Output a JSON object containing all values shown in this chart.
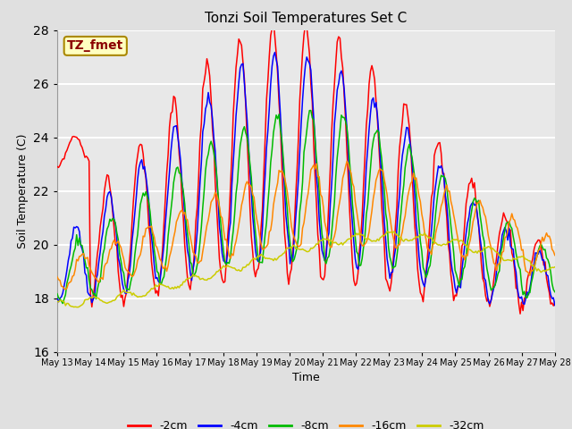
{
  "title": "Tonzi Soil Temperatures Set C",
  "xlabel": "Time",
  "ylabel": "Soil Temperature (C)",
  "ylim": [
    16,
    28
  ],
  "annotation": "TZ_fmet",
  "annotation_color": "#8B0000",
  "annotation_bg": "#FFFFC0",
  "series_colors": {
    "-2cm": "#FF0000",
    "-4cm": "#0000FF",
    "-8cm": "#00BB00",
    "-16cm": "#FF8800",
    "-32cm": "#CCCC00"
  },
  "legend_order": [
    "-2cm",
    "-4cm",
    "-8cm",
    "-16cm",
    "-32cm"
  ],
  "x_tick_labels": [
    "May 13",
    "May 14",
    "May 15",
    "May 16",
    "May 17",
    "May 18",
    "May 19",
    "May 20",
    "May 21",
    "May 22",
    "May 23",
    "May 24",
    "May 25",
    "May 26",
    "May 27",
    "May 28"
  ],
  "background_color": "#E8E8E8",
  "grid_color": "#FFFFFF",
  "yticks": [
    16,
    18,
    20,
    22,
    24,
    26,
    28
  ],
  "figsize": [
    6.4,
    4.8
  ],
  "dpi": 100
}
